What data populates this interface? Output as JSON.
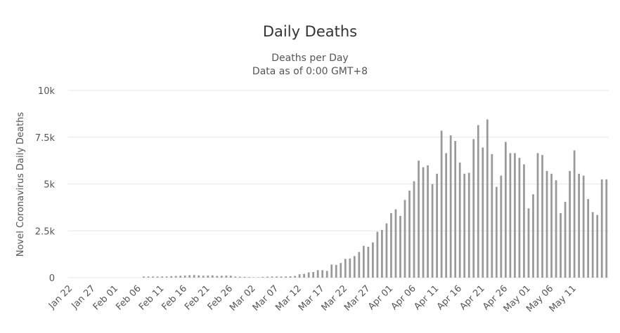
{
  "chart_data": {
    "type": "bar",
    "title": "Daily Deaths",
    "subtitle_lines": [
      "Deaths per Day",
      "Data as of 0:00 GMT+8"
    ],
    "ylabel": "Novel Coronavirus Daily Deaths",
    "ylim": [
      0,
      10000
    ],
    "yticks": [
      0,
      2500,
      5000,
      7500,
      10000
    ],
    "ytick_labels": [
      "0",
      "2.5k",
      "5k",
      "7.5k",
      "10k"
    ],
    "x_start": "2020-01-22",
    "xtick_labels": [
      "Jan 22",
      "Jan 27",
      "Feb 01",
      "Feb 06",
      "Feb 11",
      "Feb 16",
      "Feb 21",
      "Feb 26",
      "Mar 02",
      "Mar 07",
      "Mar 12",
      "Mar 17",
      "Mar 22",
      "Mar 27",
      "Apr 01",
      "Apr 06",
      "Apr 11",
      "Apr 16",
      "Apr 21",
      "Apr 26",
      "May 01",
      "May 06",
      "May 11"
    ],
    "bar_color": "#999999",
    "grid": true,
    "legend": "none",
    "values": [
      0,
      0,
      0,
      0,
      0,
      0,
      0,
      0,
      0,
      0,
      0,
      0,
      0,
      0,
      0,
      0,
      60,
      60,
      60,
      60,
      60,
      60,
      80,
      90,
      100,
      110,
      130,
      140,
      120,
      100,
      110,
      120,
      90,
      100,
      110,
      100,
      60,
      50,
      40,
      30,
      20,
      20,
      40,
      50,
      60,
      60,
      60,
      60,
      70,
      90,
      180,
      200,
      280,
      300,
      400,
      400,
      360,
      700,
      680,
      780,
      1000,
      1020,
      1150,
      1370,
      1700,
      1650,
      1880,
      2450,
      2550,
      2900,
      3450,
      3650,
      3300,
      4150,
      4650,
      5150,
      6250,
      5900,
      6000,
      5000,
      5550,
      7850,
      6650,
      7600,
      7300,
      6150,
      5550,
      5600,
      7400,
      8150,
      6950,
      8450,
      6600,
      4850,
      5450,
      7250,
      6650,
      6650,
      6400,
      6050,
      3700,
      4450,
      6650,
      6550,
      5700,
      5550,
      5200,
      3450,
      4050,
      5700,
      6800,
      5550,
      5450,
      4200,
      3500,
      3350,
      5250,
      5250
    ]
  }
}
